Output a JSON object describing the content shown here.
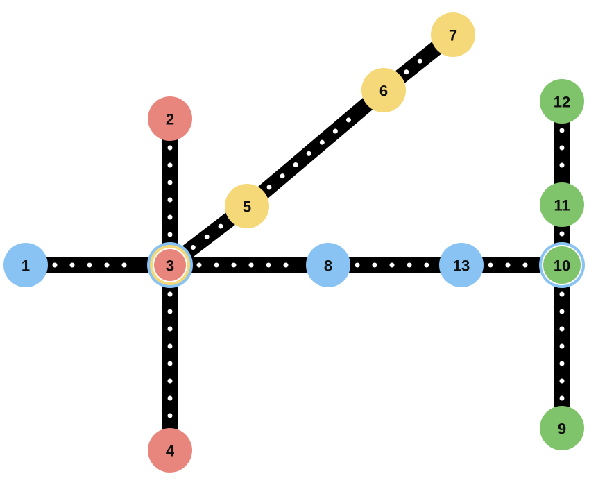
{
  "diagram": {
    "type": "network-graph",
    "description_colors": {
      "blue": "#88c3f3",
      "red": "#e8867d",
      "yellow": "#f5d878",
      "green": "#7fc36b",
      "track": "#000000"
    },
    "nodes": [
      {
        "id": "1",
        "label": "1",
        "color": "blue"
      },
      {
        "id": "2",
        "label": "2",
        "color": "red"
      },
      {
        "id": "3",
        "label": "3",
        "color": "red",
        "rings": [
          "blue",
          "yellow"
        ]
      },
      {
        "id": "4",
        "label": "4",
        "color": "red"
      },
      {
        "id": "5",
        "label": "5",
        "color": "yellow"
      },
      {
        "id": "6",
        "label": "6",
        "color": "yellow"
      },
      {
        "id": "7",
        "label": "7",
        "color": "yellow"
      },
      {
        "id": "8",
        "label": "8",
        "color": "blue"
      },
      {
        "id": "9",
        "label": "9",
        "color": "green"
      },
      {
        "id": "10",
        "label": "10",
        "color": "green",
        "rings": [
          "blue"
        ]
      },
      {
        "id": "11",
        "label": "11",
        "color": "green"
      },
      {
        "id": "12",
        "label": "12",
        "color": "green"
      },
      {
        "id": "13",
        "label": "13",
        "color": "blue"
      }
    ],
    "edges": [
      {
        "from": "1",
        "to": "3"
      },
      {
        "from": "3",
        "to": "8"
      },
      {
        "from": "8",
        "to": "13"
      },
      {
        "from": "13",
        "to": "10"
      },
      {
        "from": "2",
        "to": "3"
      },
      {
        "from": "3",
        "to": "4"
      },
      {
        "from": "3",
        "to": "5"
      },
      {
        "from": "5",
        "to": "6"
      },
      {
        "from": "6",
        "to": "7"
      },
      {
        "from": "12",
        "to": "11"
      },
      {
        "from": "11",
        "to": "10"
      },
      {
        "from": "10",
        "to": "9"
      }
    ]
  }
}
